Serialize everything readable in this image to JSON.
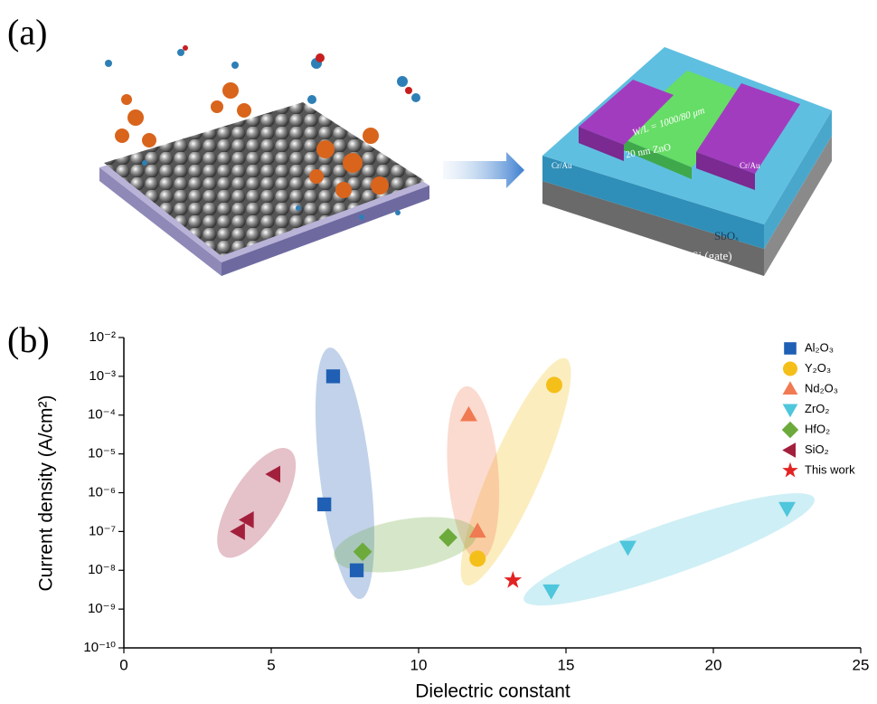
{
  "panel_labels": [
    "(a)",
    "(b)"
  ],
  "illustration": {
    "labels": [
      "Cr/Au",
      "W/L = 1000/80 μm",
      "20 nm ZnO",
      "Cr/Au",
      "SbOₓ",
      "p⁺⁺Si (gate)"
    ]
  },
  "chart_data": {
    "type": "scatter",
    "xlabel": "Dielectric constant",
    "ylabel": "Current density (A/cm²)",
    "xlim": [
      0,
      25
    ],
    "xticks": [
      0,
      5,
      10,
      15,
      20,
      25
    ],
    "ylim": [
      1e-10,
      0.01
    ],
    "yscale": "log",
    "yticks": [
      {
        "value": 1e-10,
        "label": "10⁻¹⁰"
      },
      {
        "value": 1e-09,
        "label": "10⁻⁹"
      },
      {
        "value": 1e-08,
        "label": "10⁻⁸"
      },
      {
        "value": 1e-07,
        "label": "10⁻⁷"
      },
      {
        "value": 1e-06,
        "label": "10⁻⁶"
      },
      {
        "value": 1e-05,
        "label": "10⁻⁵"
      },
      {
        "value": 0.0001,
        "label": "10⁻⁴"
      },
      {
        "value": 0.001,
        "label": "10⁻³"
      },
      {
        "value": 0.01,
        "label": "10⁻²"
      }
    ],
    "legend": "top-right",
    "series": [
      {
        "name": "Al₂O₃",
        "color": "#1f5fb4",
        "marker": "square",
        "x": [
          7.1,
          6.8,
          7.9
        ],
        "values": [
          0.001,
          5e-07,
          1e-08
        ]
      },
      {
        "name": "Y₂O₃",
        "color": "#f5bf1a",
        "marker": "circle",
        "x": [
          14.6,
          12.0
        ],
        "values": [
          0.0006,
          2e-08
        ]
      },
      {
        "name": "Nd₂O₃",
        "color": "#f07a52",
        "marker": "triangle-up",
        "x": [
          11.7,
          12.0
        ],
        "values": [
          0.0001,
          1e-07
        ]
      },
      {
        "name": "ZrO₂",
        "color": "#4ec6dc",
        "marker": "triangle-down",
        "x": [
          22.5,
          17.1,
          14.5
        ],
        "values": [
          4e-07,
          4e-08,
          3e-09
        ]
      },
      {
        "name": "HfO₂",
        "color": "#6caa3c",
        "marker": "diamond",
        "x": [
          8.1,
          11.0
        ],
        "values": [
          3e-08,
          7e-08
        ]
      },
      {
        "name": "SiO₂",
        "color": "#a3203c",
        "marker": "triangle-left",
        "x": [
          5.1,
          4.2,
          3.9
        ],
        "values": [
          3e-06,
          2e-07,
          1e-07
        ]
      },
      {
        "name": "This work",
        "color": "#e32222",
        "marker": "star",
        "x": [
          13.2
        ],
        "values": [
          5.5e-09
        ]
      }
    ]
  }
}
